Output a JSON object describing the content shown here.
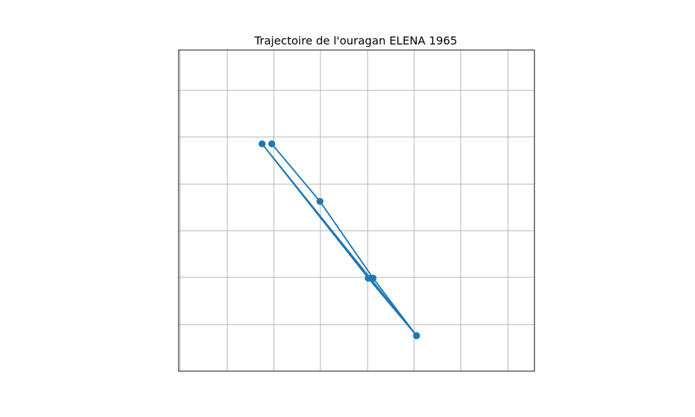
{
  "chart_data": {
    "type": "line",
    "title": "Trajectoire de l'ouragan ELENA 1965",
    "xlabel": "",
    "ylabel": "",
    "grid": true,
    "axis_ticks_labels_shown": false,
    "series": [
      {
        "color": "#1f77b4",
        "marker": "circle",
        "x": [
          1.8,
          2.3,
          2.85,
          3.3,
          1.7,
          2.8,
          3.3
        ],
        "y": [
          1.9,
          2.2,
          2.6,
          2.9,
          1.9,
          2.6,
          2.9
        ]
      }
    ]
  }
}
